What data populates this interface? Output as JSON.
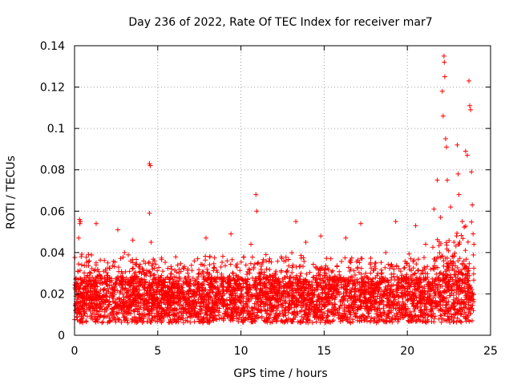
{
  "chart_data": {
    "type": "scatter",
    "title": "Day 236 of 2022, Rate Of TEC Index for receiver mar7",
    "xlabel": "GPS time / hours",
    "ylabel": "ROTI / TECUs",
    "xlim": [
      0,
      25
    ],
    "ylim": [
      0,
      0.14
    ],
    "x_ticks": [
      0,
      5,
      10,
      15,
      20,
      25
    ],
    "y_ticks": [
      0,
      0.02,
      0.04,
      0.06,
      0.08,
      0.1,
      0.12,
      0.14
    ],
    "x_tick_labels": [
      "0",
      "5",
      "10",
      "15",
      "20",
      "25"
    ],
    "y_tick_labels": [
      "0",
      "0.02",
      "0.04",
      "0.06",
      "0.08",
      "0.1",
      "0.12",
      "0.14"
    ],
    "grid": true,
    "marker": "+",
    "marker_color": "#ff0000",
    "series": [
      {
        "name": "ROTI",
        "points": [
          [
            0.05,
            0.012
          ],
          [
            0.12,
            0.022
          ],
          [
            0.2,
            0.031
          ],
          [
            0.25,
            0.047
          ],
          [
            0.3,
            0.056
          ],
          [
            0.32,
            0.054
          ],
          [
            0.35,
            0.055
          ],
          [
            0.4,
            0.038
          ],
          [
            0.5,
            0.018
          ],
          [
            0.7,
            0.025
          ],
          [
            0.9,
            0.03
          ],
          [
            1.2,
            0.02
          ],
          [
            1.3,
            0.054
          ],
          [
            1.5,
            0.015
          ],
          [
            1.8,
            0.028
          ],
          [
            2.0,
            0.035
          ],
          [
            2.3,
            0.019
          ],
          [
            2.6,
            0.051
          ],
          [
            2.8,
            0.026
          ],
          [
            3.0,
            0.04
          ],
          [
            3.2,
            0.014
          ],
          [
            3.5,
            0.046
          ],
          [
            3.7,
            0.022
          ],
          [
            3.9,
            0.033
          ],
          [
            4.1,
            0.017
          ],
          [
            4.3,
            0.029
          ],
          [
            4.5,
            0.083
          ],
          [
            4.55,
            0.082
          ],
          [
            4.5,
            0.059
          ],
          [
            4.6,
            0.045
          ],
          [
            4.8,
            0.036
          ],
          [
            5.0,
            0.021
          ],
          [
            5.3,
            0.031
          ],
          [
            5.6,
            0.018
          ],
          [
            5.9,
            0.027
          ],
          [
            6.2,
            0.034
          ],
          [
            6.5,
            0.02
          ],
          [
            6.8,
            0.03
          ],
          [
            7.1,
            0.016
          ],
          [
            7.4,
            0.037
          ],
          [
            7.7,
            0.024
          ],
          [
            7.9,
            0.047
          ],
          [
            8.2,
            0.028
          ],
          [
            8.5,
            0.019
          ],
          [
            8.8,
            0.033
          ],
          [
            9.1,
            0.022
          ],
          [
            9.4,
            0.049
          ],
          [
            9.7,
            0.029
          ],
          [
            10.0,
            0.018
          ],
          [
            10.3,
            0.034
          ],
          [
            10.6,
            0.044
          ],
          [
            10.9,
            0.068
          ],
          [
            10.95,
            0.06
          ],
          [
            11.2,
            0.025
          ],
          [
            11.5,
            0.039
          ],
          [
            11.8,
            0.021
          ],
          [
            12.1,
            0.031
          ],
          [
            12.4,
            0.017
          ],
          [
            12.7,
            0.036
          ],
          [
            13.0,
            0.026
          ],
          [
            13.3,
            0.055
          ],
          [
            13.6,
            0.03
          ],
          [
            13.9,
            0.045
          ],
          [
            14.2,
            0.02
          ],
          [
            14.5,
            0.033
          ],
          [
            14.8,
            0.048
          ],
          [
            15.1,
            0.024
          ],
          [
            15.4,
            0.037
          ],
          [
            15.7,
            0.019
          ],
          [
            16.0,
            0.028
          ],
          [
            16.3,
            0.047
          ],
          [
            16.6,
            0.032
          ],
          [
            16.9,
            0.021
          ],
          [
            17.2,
            0.054
          ],
          [
            17.5,
            0.03
          ],
          [
            17.8,
            0.018
          ],
          [
            18.1,
            0.035
          ],
          [
            18.4,
            0.026
          ],
          [
            18.7,
            0.04
          ],
          [
            19.0,
            0.022
          ],
          [
            19.3,
            0.055
          ],
          [
            19.6,
            0.031
          ],
          [
            19.9,
            0.019
          ],
          [
            20.2,
            0.037
          ],
          [
            20.5,
            0.053
          ],
          [
            20.8,
            0.027
          ],
          [
            21.1,
            0.044
          ],
          [
            21.4,
            0.024
          ],
          [
            21.6,
            0.061
          ],
          [
            21.8,
            0.075
          ],
          [
            22.0,
            0.057
          ],
          [
            22.1,
            0.118
          ],
          [
            22.15,
            0.106
          ],
          [
            22.2,
            0.135
          ],
          [
            22.22,
            0.132
          ],
          [
            22.25,
            0.125
          ],
          [
            22.3,
            0.095
          ],
          [
            22.35,
            0.091
          ],
          [
            22.4,
            0.075
          ],
          [
            22.6,
            0.062
          ],
          [
            22.8,
            0.045
          ],
          [
            23.0,
            0.092
          ],
          [
            23.05,
            0.078
          ],
          [
            23.1,
            0.068
          ],
          [
            23.3,
            0.055
          ],
          [
            23.5,
            0.089
          ],
          [
            23.6,
            0.087
          ],
          [
            23.7,
            0.123
          ],
          [
            23.75,
            0.111
          ],
          [
            23.8,
            0.109
          ],
          [
            23.85,
            0.079
          ],
          [
            23.9,
            0.063
          ],
          [
            23.95,
            0.049
          ],
          [
            24.0,
            0.044
          ]
        ]
      }
    ]
  }
}
